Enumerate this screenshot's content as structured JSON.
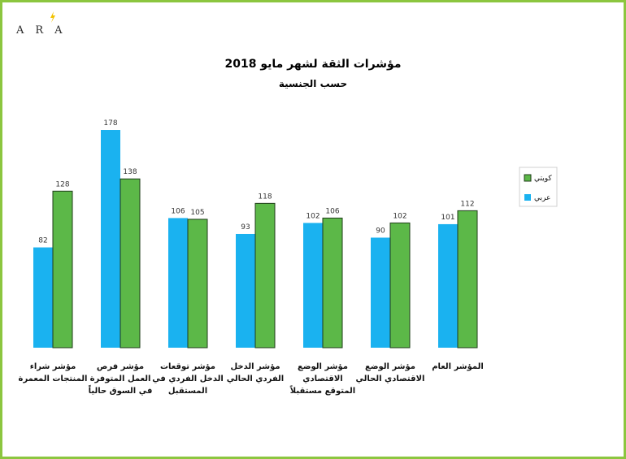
{
  "logo": {
    "text": "ARA",
    "accent_color": "#f2c200"
  },
  "frame_color": "#8cc63f",
  "chart_data": {
    "type": "bar",
    "title": "مؤشرات الثقة لشهر مايو 2018",
    "subtitle": "حسب الجنسية",
    "categories": [
      [
        "مؤشر شراء",
        "المنتجات المعمرة"
      ],
      [
        "مؤشر فرص",
        "العمل المتوفرة",
        "في السوق حالياً"
      ],
      [
        "مؤشر توقعات",
        "الدخل الفردي في",
        "المستقبل"
      ],
      [
        "مؤشر الدخل",
        "الفردي الحالي"
      ],
      [
        "مؤشر الوضع",
        "الاقتصادي",
        "المتوقع مستقبلاً"
      ],
      [
        "مؤشر الوضع",
        "الاقتصادي الحالي"
      ],
      [
        "المؤشر العام"
      ]
    ],
    "series": [
      {
        "name": "عربي",
        "color": "#1ab2f0",
        "values": [
          82,
          178,
          106,
          93,
          102,
          90,
          101
        ]
      },
      {
        "name": "كويتي",
        "color": "#5cb848",
        "values": [
          128,
          138,
          105,
          118,
          106,
          102,
          112
        ]
      }
    ],
    "ylim": [
      0,
      180
    ],
    "legend_position": "right",
    "grid": false
  }
}
